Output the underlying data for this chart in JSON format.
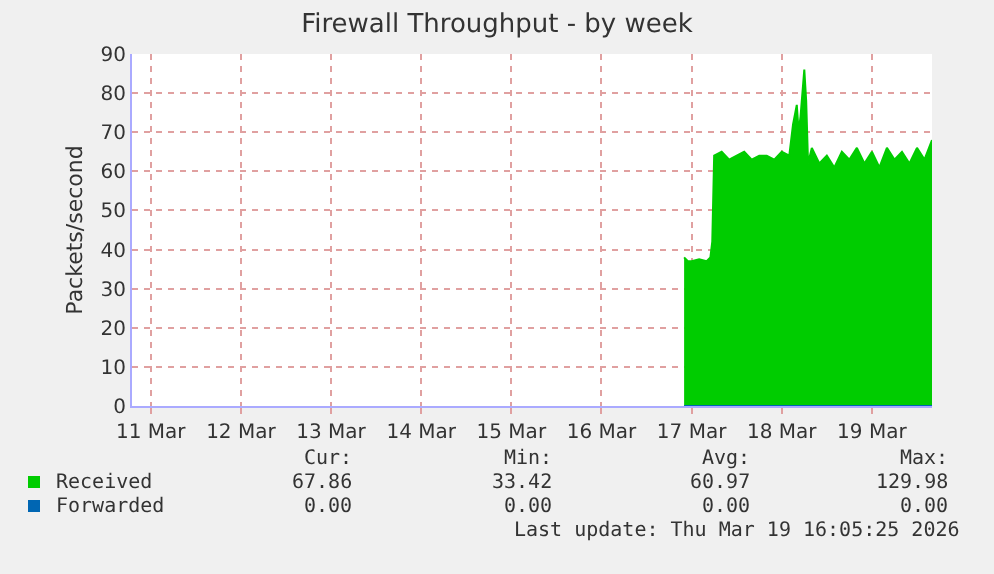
{
  "chart_data": {
    "type": "area",
    "title": "Firewall Throughput - by week",
    "ylabel": "Packets/second",
    "xlim": [
      "2026-03-10T19:00",
      "2026-03-19T16:00"
    ],
    "xticks": [
      {
        "value": "2026-03-11",
        "label": "11 Mar"
      },
      {
        "value": "2026-03-12",
        "label": "12 Mar"
      },
      {
        "value": "2026-03-13",
        "label": "13 Mar"
      },
      {
        "value": "2026-03-14",
        "label": "14 Mar"
      },
      {
        "value": "2026-03-15",
        "label": "15 Mar"
      },
      {
        "value": "2026-03-16",
        "label": "16 Mar"
      },
      {
        "value": "2026-03-17",
        "label": "17 Mar"
      },
      {
        "value": "2026-03-18",
        "label": "18 Mar"
      },
      {
        "value": "2026-03-19",
        "label": "19 Mar"
      }
    ],
    "ylim": [
      0,
      90
    ],
    "yticks": [
      0,
      10,
      20,
      30,
      40,
      50,
      60,
      70,
      80,
      90
    ],
    "grid": true,
    "legend": "bottom",
    "series": [
      {
        "name": "Received",
        "color": "#00cc00",
        "x": [
          "2026-03-16T22:00",
          "2026-03-16T23:00",
          "2026-03-17T00:00",
          "2026-03-17T02:00",
          "2026-03-17T04:00",
          "2026-03-17T05:00",
          "2026-03-17T05:30",
          "2026-03-17T06:00",
          "2026-03-17T08:00",
          "2026-03-17T10:00",
          "2026-03-17T12:00",
          "2026-03-17T14:00",
          "2026-03-17T16:00",
          "2026-03-17T18:00",
          "2026-03-17T20:00",
          "2026-03-17T22:00",
          "2026-03-18T00:00",
          "2026-03-18T02:00",
          "2026-03-18T03:00",
          "2026-03-18T04:00",
          "2026-03-18T04:30",
          "2026-03-18T05:00",
          "2026-03-18T06:00",
          "2026-03-18T06:30",
          "2026-03-18T07:00",
          "2026-03-18T08:00",
          "2026-03-18T10:00",
          "2026-03-18T12:00",
          "2026-03-18T14:00",
          "2026-03-18T16:00",
          "2026-03-18T18:00",
          "2026-03-18T20:00",
          "2026-03-18T22:00",
          "2026-03-19T00:00",
          "2026-03-19T02:00",
          "2026-03-19T04:00",
          "2026-03-19T06:00",
          "2026-03-19T08:00",
          "2026-03-19T10:00",
          "2026-03-19T12:00",
          "2026-03-19T14:00",
          "2026-03-19T16:00"
        ],
        "values": [
          38,
          37,
          37,
          37.5,
          37,
          38,
          42,
          64,
          65,
          63,
          64,
          65,
          63,
          64,
          64,
          63,
          65,
          64,
          72,
          77,
          70,
          74,
          86,
          78,
          62,
          66,
          62,
          64,
          61,
          65,
          63,
          66,
          62,
          65,
          61,
          66,
          63,
          65,
          62,
          66,
          63,
          68
        ]
      },
      {
        "name": "Forwarded",
        "color": "#0066b3",
        "type": "line",
        "x": [
          "2026-03-16T22:00",
          "2026-03-19T16:00"
        ],
        "values": [
          0,
          0
        ]
      }
    ],
    "annotations": [
      "Cur:",
      "Min:",
      "Avg:",
      "Max:",
      "67.86",
      "33.42",
      "60.97",
      "129.98",
      "0.00",
      "0.00",
      "0.00",
      "0.00",
      "Last update: Thu Mar 19 16:05:25 2026"
    ]
  }
}
